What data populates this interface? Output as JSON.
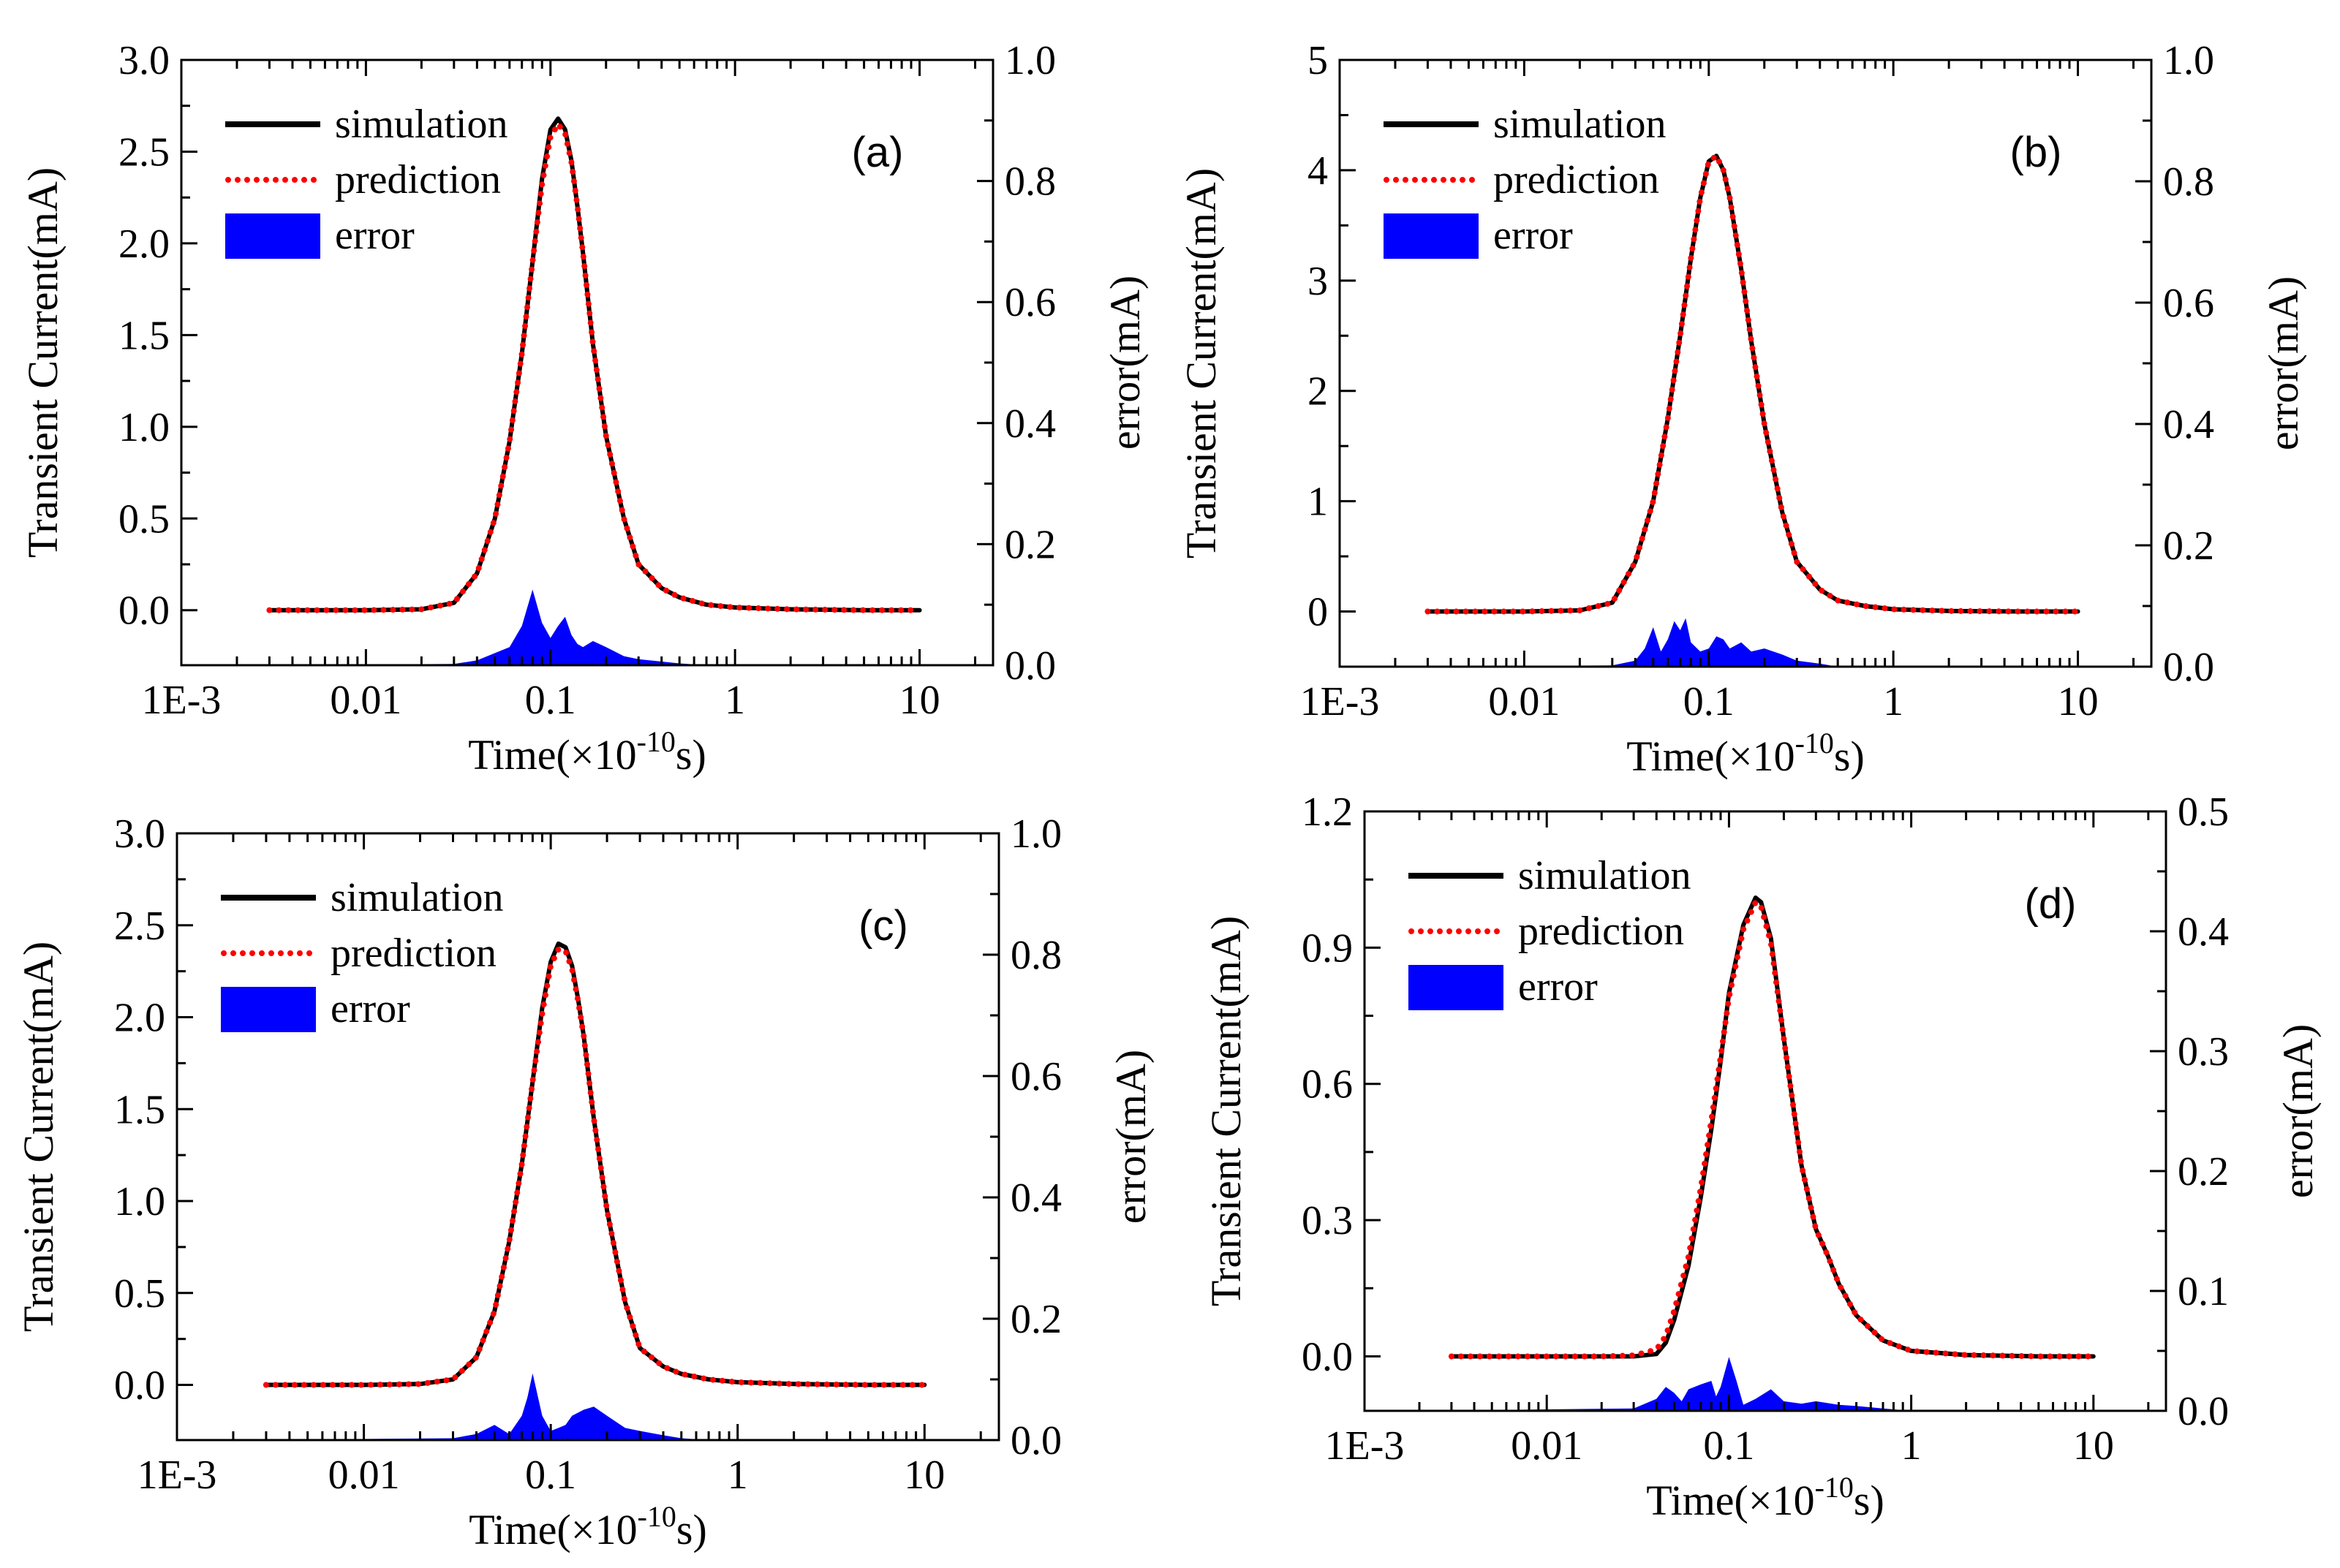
{
  "chart_data": [
    {
      "type": "line",
      "panel_label": "(a)",
      "xlabel_main": "Time(×10",
      "xlabel_exp": "-10",
      "xlabel_unit": "s)",
      "ylabel": "Transient Current(mA)",
      "ylabel_right": "error(mA)",
      "x_scale": "log",
      "xlim": [
        0.001,
        25
      ],
      "x_ticks": [
        0.001,
        0.01,
        0.1,
        1,
        10
      ],
      "x_tick_labels": [
        "1E-3",
        "0.01",
        "0.1",
        "1",
        "10"
      ],
      "ylim": [
        -0.3,
        3.0
      ],
      "y_ticks": [
        0.0,
        0.5,
        1.0,
        1.5,
        2.0,
        2.5,
        3.0
      ],
      "y_tick_labels": [
        "0.0",
        "0.5",
        "1.0",
        "1.5",
        "2.0",
        "2.5",
        "3.0"
      ],
      "ylim_right": [
        0.0,
        1.0
      ],
      "y_ticks_right": [
        0.0,
        0.2,
        0.4,
        0.6,
        0.8,
        1.0
      ],
      "y_tick_labels_right": [
        "0.0",
        "0.2",
        "0.4",
        "0.6",
        "0.8",
        "1.0"
      ],
      "legend": [
        "simulation",
        "prediction",
        "error"
      ],
      "legend_position": "top-left",
      "grid": false,
      "colors": {
        "simulation": "#000000",
        "prediction": "#ff0000",
        "error": "#0000ff"
      },
      "series": [
        {
          "name": "simulation",
          "axis": "left",
          "x": [
            0.003,
            0.005,
            0.01,
            0.02,
            0.03,
            0.04,
            0.05,
            0.06,
            0.07,
            0.08,
            0.09,
            0.1,
            0.11,
            0.12,
            0.13,
            0.14,
            0.15,
            0.17,
            0.2,
            0.25,
            0.3,
            0.4,
            0.5,
            0.7,
            1,
            2,
            5,
            10
          ],
          "y": [
            0.0,
            0.0,
            0.0,
            0.005,
            0.04,
            0.2,
            0.5,
            0.92,
            1.4,
            1.9,
            2.35,
            2.62,
            2.68,
            2.62,
            2.45,
            2.2,
            1.95,
            1.45,
            0.95,
            0.5,
            0.25,
            0.12,
            0.07,
            0.03,
            0.015,
            0.005,
            0.0,
            0.0
          ]
        },
        {
          "name": "prediction",
          "axis": "left",
          "x": [
            0.003,
            0.005,
            0.01,
            0.02,
            0.03,
            0.04,
            0.05,
            0.06,
            0.07,
            0.08,
            0.09,
            0.1,
            0.11,
            0.12,
            0.13,
            0.14,
            0.15,
            0.17,
            0.2,
            0.25,
            0.3,
            0.4,
            0.5,
            0.7,
            1,
            2,
            5,
            10
          ],
          "y": [
            0.0,
            0.0,
            0.0,
            0.005,
            0.04,
            0.2,
            0.5,
            0.92,
            1.4,
            1.9,
            2.32,
            2.58,
            2.65,
            2.6,
            2.44,
            2.2,
            1.95,
            1.45,
            0.95,
            0.5,
            0.25,
            0.12,
            0.07,
            0.03,
            0.015,
            0.005,
            0.0,
            0.0
          ]
        },
        {
          "name": "error",
          "axis": "right",
          "style": "area",
          "x": [
            0.002,
            0.03,
            0.04,
            0.05,
            0.06,
            0.07,
            0.08,
            0.09,
            0.1,
            0.11,
            0.12,
            0.13,
            0.14,
            0.15,
            0.17,
            0.2,
            0.25,
            0.3,
            0.4,
            0.5,
            0.7
          ],
          "y": [
            0.0,
            0.002,
            0.008,
            0.02,
            0.03,
            0.065,
            0.125,
            0.07,
            0.045,
            0.065,
            0.08,
            0.05,
            0.035,
            0.03,
            0.04,
            0.03,
            0.015,
            0.01,
            0.006,
            0.003,
            0.0
          ]
        }
      ]
    },
    {
      "type": "line",
      "panel_label": "(b)",
      "xlabel_main": "Time(×10",
      "xlabel_exp": "-10",
      "xlabel_unit": "s)",
      "ylabel": "Transient Current(mA)",
      "ylabel_right": "error(mA)",
      "x_scale": "log",
      "xlim": [
        0.001,
        25
      ],
      "x_ticks": [
        0.001,
        0.01,
        0.1,
        1,
        10
      ],
      "x_tick_labels": [
        "1E-3",
        "0.01",
        "0.1",
        "1",
        "10"
      ],
      "ylim": [
        -0.5,
        5.0
      ],
      "y_ticks": [
        0,
        1,
        2,
        3,
        4,
        5
      ],
      "y_tick_labels": [
        "0",
        "1",
        "2",
        "3",
        "4",
        "5"
      ],
      "ylim_right": [
        0.0,
        1.0
      ],
      "y_ticks_right": [
        0.0,
        0.2,
        0.4,
        0.6,
        0.8,
        1.0
      ],
      "y_tick_labels_right": [
        "0.0",
        "0.2",
        "0.4",
        "0.6",
        "0.8",
        "1.0"
      ],
      "legend": [
        "simulation",
        "prediction",
        "error"
      ],
      "legend_position": "top-left",
      "grid": false,
      "colors": {
        "simulation": "#000000",
        "prediction": "#ff0000",
        "error": "#0000ff"
      },
      "series": [
        {
          "name": "simulation",
          "axis": "left",
          "x": [
            0.003,
            0.005,
            0.01,
            0.02,
            0.03,
            0.04,
            0.05,
            0.06,
            0.07,
            0.08,
            0.09,
            0.1,
            0.11,
            0.12,
            0.13,
            0.15,
            0.17,
            0.2,
            0.25,
            0.3,
            0.4,
            0.5,
            0.7,
            1,
            2,
            5,
            10
          ],
          "y": [
            0.0,
            0.0,
            0.0,
            0.01,
            0.08,
            0.45,
            1.0,
            1.75,
            2.5,
            3.2,
            3.75,
            4.08,
            4.13,
            4.0,
            3.75,
            3.1,
            2.45,
            1.7,
            0.9,
            0.45,
            0.2,
            0.1,
            0.05,
            0.02,
            0.005,
            0.0,
            0.0
          ]
        },
        {
          "name": "prediction",
          "axis": "left",
          "x": [
            0.003,
            0.005,
            0.01,
            0.02,
            0.03,
            0.04,
            0.05,
            0.06,
            0.07,
            0.08,
            0.09,
            0.1,
            0.11,
            0.12,
            0.13,
            0.15,
            0.17,
            0.2,
            0.25,
            0.3,
            0.4,
            0.5,
            0.7,
            1,
            2,
            5,
            10
          ],
          "y": [
            0.0,
            0.0,
            0.0,
            0.01,
            0.08,
            0.45,
            1.0,
            1.75,
            2.5,
            3.2,
            3.75,
            4.08,
            4.13,
            4.0,
            3.75,
            3.1,
            2.45,
            1.7,
            0.9,
            0.45,
            0.2,
            0.1,
            0.05,
            0.02,
            0.005,
            0.0,
            0.0
          ]
        },
        {
          "name": "error",
          "axis": "right",
          "style": "area",
          "x": [
            0.002,
            0.03,
            0.04,
            0.045,
            0.05,
            0.055,
            0.06,
            0.065,
            0.07,
            0.075,
            0.08,
            0.09,
            0.1,
            0.11,
            0.12,
            0.13,
            0.15,
            0.17,
            0.2,
            0.25,
            0.3,
            0.4,
            0.5
          ],
          "y": [
            0.0,
            0.002,
            0.01,
            0.03,
            0.065,
            0.025,
            0.045,
            0.075,
            0.06,
            0.08,
            0.04,
            0.025,
            0.03,
            0.05,
            0.045,
            0.03,
            0.04,
            0.025,
            0.03,
            0.02,
            0.01,
            0.005,
            0.0
          ]
        }
      ]
    },
    {
      "type": "line",
      "panel_label": "(c)",
      "xlabel_main": "Time(×10",
      "xlabel_exp": "-10",
      "xlabel_unit": "s)",
      "ylabel": "Transient Current(mA)",
      "ylabel_right": "error(mA)",
      "x_scale": "log",
      "xlim": [
        0.001,
        25
      ],
      "x_ticks": [
        0.001,
        0.01,
        0.1,
        1,
        10
      ],
      "x_tick_labels": [
        "1E-3",
        "0.01",
        "0.1",
        "1",
        "10"
      ],
      "ylim": [
        -0.3,
        3.0
      ],
      "y_ticks": [
        0.0,
        0.5,
        1.0,
        1.5,
        2.0,
        2.5,
        3.0
      ],
      "y_tick_labels": [
        "0.0",
        "0.5",
        "1.0",
        "1.5",
        "2.0",
        "2.5",
        "3.0"
      ],
      "ylim_right": [
        0.0,
        1.0
      ],
      "y_ticks_right": [
        0.0,
        0.2,
        0.4,
        0.6,
        0.8,
        1.0
      ],
      "y_tick_labels_right": [
        "0.0",
        "0.2",
        "0.4",
        "0.6",
        "0.8",
        "1.0"
      ],
      "legend": [
        "simulation",
        "prediction",
        "error"
      ],
      "legend_position": "top-left",
      "grid": false,
      "colors": {
        "simulation": "#000000",
        "prediction": "#ff0000",
        "error": "#0000ff"
      },
      "series": [
        {
          "name": "simulation",
          "axis": "left",
          "x": [
            0.003,
            0.005,
            0.01,
            0.02,
            0.03,
            0.04,
            0.05,
            0.06,
            0.07,
            0.08,
            0.09,
            0.1,
            0.11,
            0.12,
            0.13,
            0.14,
            0.15,
            0.17,
            0.2,
            0.25,
            0.3,
            0.4,
            0.5,
            0.7,
            1,
            2,
            5,
            10
          ],
          "y": [
            0.0,
            0.0,
            0.0,
            0.005,
            0.03,
            0.15,
            0.4,
            0.78,
            1.2,
            1.65,
            2.05,
            2.3,
            2.4,
            2.38,
            2.28,
            2.1,
            1.9,
            1.45,
            0.95,
            0.45,
            0.2,
            0.1,
            0.06,
            0.03,
            0.015,
            0.005,
            0.0,
            0.0
          ]
        },
        {
          "name": "prediction",
          "axis": "left",
          "x": [
            0.003,
            0.005,
            0.01,
            0.02,
            0.03,
            0.04,
            0.05,
            0.06,
            0.07,
            0.08,
            0.09,
            0.1,
            0.11,
            0.12,
            0.13,
            0.14,
            0.15,
            0.17,
            0.2,
            0.25,
            0.3,
            0.4,
            0.5,
            0.7,
            1,
            2,
            5,
            10
          ],
          "y": [
            0.0,
            0.0,
            0.0,
            0.005,
            0.03,
            0.15,
            0.4,
            0.78,
            1.2,
            1.65,
            2.02,
            2.28,
            2.37,
            2.36,
            2.26,
            2.09,
            1.9,
            1.45,
            0.95,
            0.45,
            0.2,
            0.1,
            0.06,
            0.03,
            0.015,
            0.005,
            0.0,
            0.0
          ]
        },
        {
          "name": "error",
          "axis": "right",
          "style": "area",
          "x": [
            0.002,
            0.03,
            0.04,
            0.05,
            0.06,
            0.07,
            0.075,
            0.08,
            0.09,
            0.1,
            0.11,
            0.12,
            0.13,
            0.15,
            0.17,
            0.2,
            0.25,
            0.3,
            0.4,
            0.5,
            0.7
          ],
          "y": [
            0.0,
            0.003,
            0.01,
            0.025,
            0.01,
            0.04,
            0.07,
            0.11,
            0.04,
            0.015,
            0.02,
            0.025,
            0.04,
            0.05,
            0.055,
            0.04,
            0.02,
            0.015,
            0.008,
            0.003,
            0.0
          ]
        }
      ]
    },
    {
      "type": "line",
      "panel_label": "(d)",
      "xlabel_main": "Time(×10",
      "xlabel_exp": "-10",
      "xlabel_unit": "s)",
      "ylabel": "Transient Current(mA)",
      "ylabel_right": "error(mA)",
      "x_scale": "log",
      "xlim": [
        0.001,
        25
      ],
      "x_ticks": [
        0.001,
        0.01,
        0.1,
        1,
        10
      ],
      "x_tick_labels": [
        "1E-3",
        "0.01",
        "0.1",
        "1",
        "10"
      ],
      "ylim": [
        -0.12,
        1.2
      ],
      "y_ticks": [
        0.0,
        0.3,
        0.6,
        0.9,
        1.2
      ],
      "y_tick_labels": [
        "0.0",
        "0.3",
        "0.6",
        "0.9",
        "1.2"
      ],
      "ylim_right": [
        0.0,
        0.5
      ],
      "y_ticks_right": [
        0.0,
        0.1,
        0.2,
        0.3,
        0.4,
        0.5
      ],
      "y_tick_labels_right": [
        "0.0",
        "0.1",
        "0.2",
        "0.3",
        "0.4",
        "0.5"
      ],
      "legend": [
        "simulation",
        "prediction",
        "error"
      ],
      "legend_position": "top-left",
      "grid": false,
      "colors": {
        "simulation": "#000000",
        "prediction": "#ff0000",
        "error": "#0000ff"
      },
      "series": [
        {
          "name": "simulation",
          "axis": "left",
          "x": [
            0.003,
            0.005,
            0.01,
            0.02,
            0.03,
            0.04,
            0.045,
            0.05,
            0.06,
            0.07,
            0.08,
            0.09,
            0.1,
            0.12,
            0.14,
            0.15,
            0.17,
            0.2,
            0.25,
            0.3,
            0.35,
            0.4,
            0.5,
            0.7,
            1,
            2,
            5,
            10
          ],
          "y": [
            0.0,
            0.0,
            0.0,
            0.0,
            0.0,
            0.005,
            0.03,
            0.08,
            0.2,
            0.35,
            0.5,
            0.65,
            0.8,
            0.95,
            1.01,
            1.0,
            0.92,
            0.7,
            0.42,
            0.28,
            0.22,
            0.16,
            0.09,
            0.035,
            0.012,
            0.003,
            0.0,
            0.0
          ]
        },
        {
          "name": "prediction",
          "axis": "left",
          "x": [
            0.003,
            0.005,
            0.01,
            0.02,
            0.03,
            0.04,
            0.045,
            0.05,
            0.06,
            0.07,
            0.08,
            0.09,
            0.1,
            0.12,
            0.14,
            0.15,
            0.17,
            0.2,
            0.25,
            0.3,
            0.35,
            0.4,
            0.5,
            0.7,
            1,
            2,
            5,
            10
          ],
          "y": [
            0.0,
            0.0,
            0.0,
            0.0,
            0.002,
            0.015,
            0.045,
            0.1,
            0.22,
            0.37,
            0.52,
            0.66,
            0.79,
            0.94,
            1.0,
            0.99,
            0.91,
            0.7,
            0.42,
            0.28,
            0.22,
            0.16,
            0.09,
            0.035,
            0.012,
            0.003,
            0.0,
            0.0
          ]
        },
        {
          "name": "error",
          "axis": "right",
          "style": "area",
          "x": [
            0.002,
            0.03,
            0.04,
            0.045,
            0.05,
            0.055,
            0.06,
            0.07,
            0.08,
            0.085,
            0.09,
            0.1,
            0.11,
            0.12,
            0.14,
            0.17,
            0.2,
            0.25,
            0.3,
            0.4,
            0.5,
            0.7,
            1.0
          ],
          "y": [
            0.0,
            0.002,
            0.01,
            0.02,
            0.015,
            0.008,
            0.018,
            0.022,
            0.025,
            0.012,
            0.02,
            0.045,
            0.025,
            0.005,
            0.01,
            0.018,
            0.008,
            0.006,
            0.008,
            0.005,
            0.004,
            0.002,
            0.0
          ]
        }
      ]
    }
  ]
}
